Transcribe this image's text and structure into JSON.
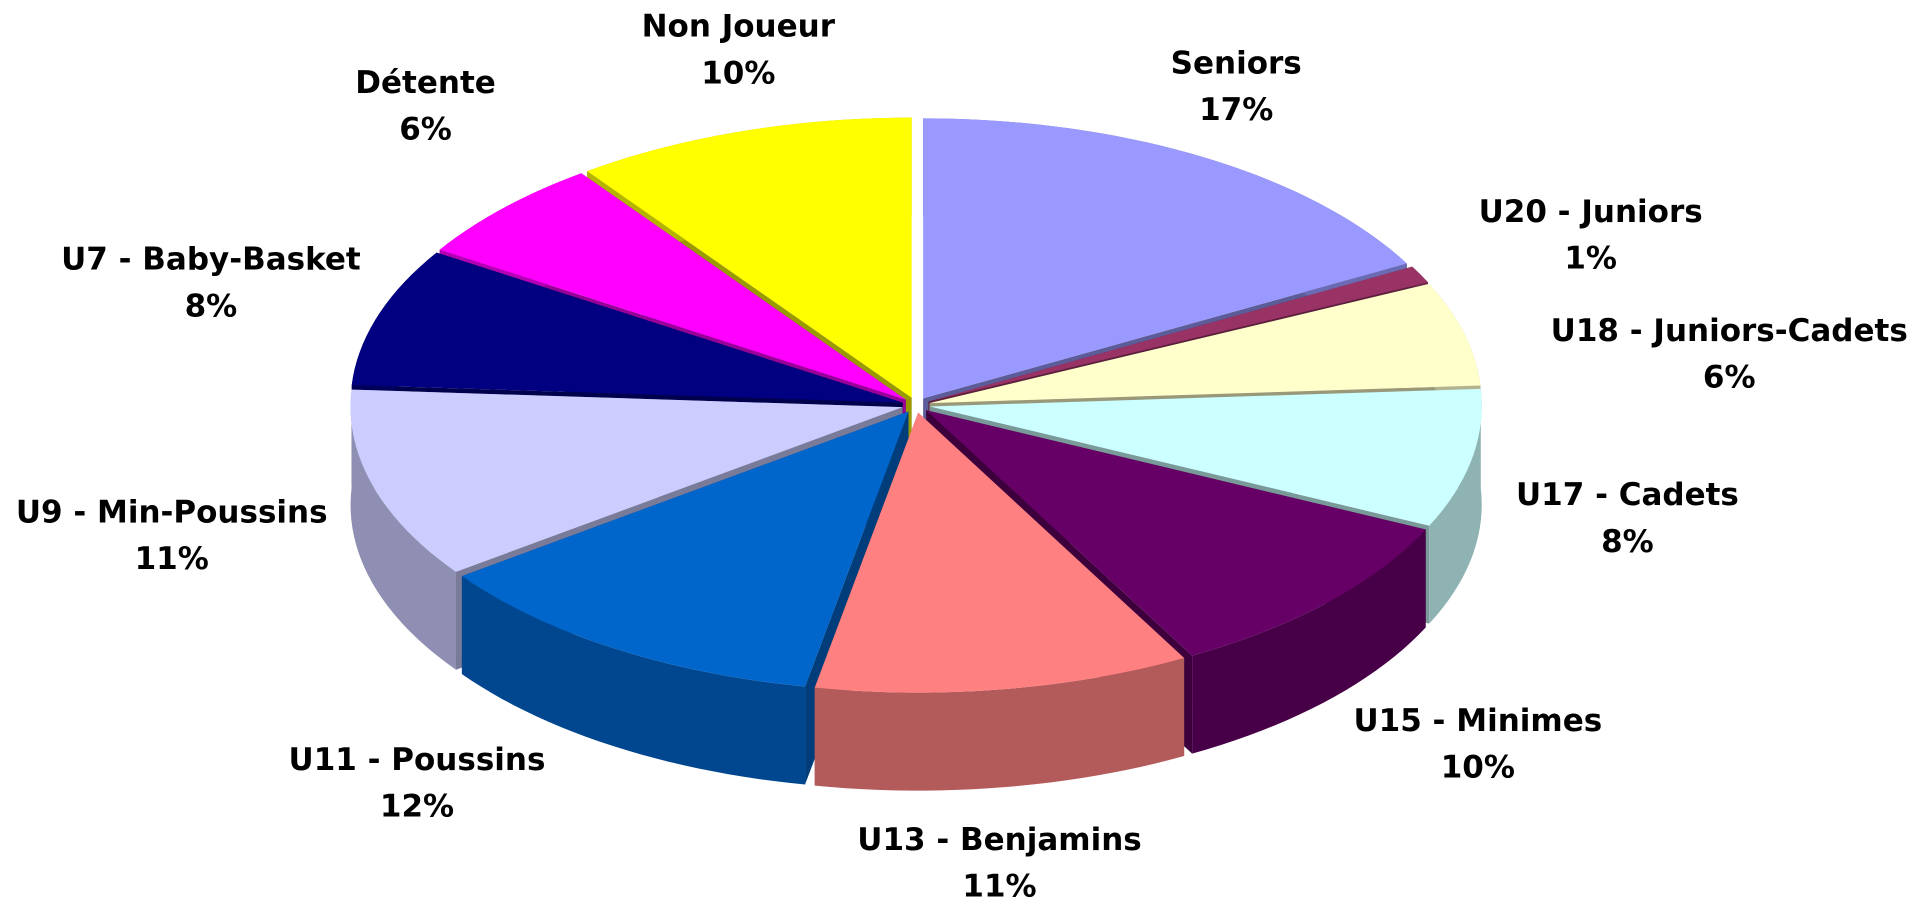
{
  "chart_data": {
    "type": "pie3d",
    "categories": [
      "Seniors",
      "U20 - Juniors",
      "U18 - Juniors-Cadets",
      "U17 - Cadets",
      "U15 - Minimes",
      "U13 - Benjamins",
      "U11 - Poussins",
      "U9 - Min-Poussins",
      "U7 - Baby-Basket",
      "Détente",
      "Non Joueur"
    ],
    "values": [
      17,
      1,
      6,
      8,
      10,
      11,
      12,
      11,
      8,
      6,
      10
    ],
    "value_labels": [
      "17%",
      "1%",
      "6%",
      "8%",
      "10%",
      "11%",
      "12%",
      "11%",
      "8%",
      "6%",
      "10%"
    ],
    "colors": [
      "#9999ff",
      "#993366",
      "#ffffcc",
      "#ccffff",
      "#660066",
      "#ff8080",
      "#0066cc",
      "#ccccff",
      "#000080",
      "#ff00ff",
      "#ffff00"
    ]
  }
}
